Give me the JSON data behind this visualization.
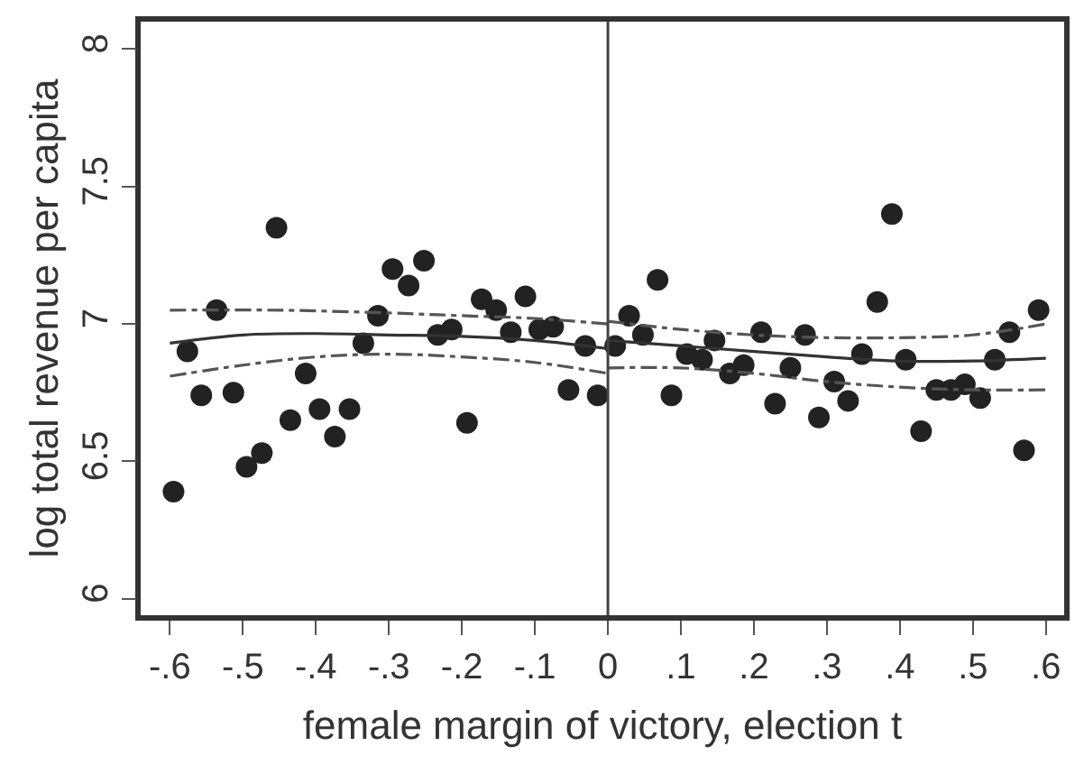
{
  "chart_data": {
    "type": "scatter",
    "xlabel": "female margin of victory, election t",
    "ylabel": "log total revenue per capita",
    "xlim": [
      -0.64,
      0.625
    ],
    "ylim": [
      5.94,
      8.1
    ],
    "xticks": [
      {
        "value": -0.6,
        "label": "-.6"
      },
      {
        "value": -0.5,
        "label": "-.5"
      },
      {
        "value": -0.4,
        "label": "-.4"
      },
      {
        "value": -0.3,
        "label": "-.3"
      },
      {
        "value": -0.2,
        "label": "-.2"
      },
      {
        "value": -0.1,
        "label": "-.1"
      },
      0,
      {
        "value": 0.1,
        "label": ".1"
      },
      {
        "value": 0.2,
        "label": ".2"
      },
      {
        "value": 0.3,
        "label": ".3"
      },
      {
        "value": 0.4,
        "label": ".4"
      },
      {
        "value": 0.5,
        "label": ".5"
      },
      {
        "value": 0.6,
        "label": ".6"
      }
    ],
    "yticks": [
      6,
      6.5,
      7,
      7.5,
      8
    ],
    "ref_lines": [
      {
        "axis": "x",
        "value": 0,
        "color": "#444444"
      }
    ],
    "series": [
      {
        "marker": "circle",
        "color": "#222222",
        "x": [
          -0.595,
          -0.576,
          -0.557,
          -0.536,
          -0.513,
          -0.495,
          -0.474,
          -0.454,
          -0.435,
          -0.414,
          -0.395,
          -0.374,
          -0.354,
          -0.335,
          -0.315,
          -0.295,
          -0.273,
          -0.252,
          -0.233,
          -0.214,
          -0.193,
          -0.173,
          -0.153,
          -0.133,
          -0.113,
          -0.094,
          -0.075,
          -0.054,
          -0.031,
          -0.014,
          0.01,
          0.029,
          0.048,
          0.068,
          0.087,
          0.108,
          0.129,
          0.146,
          0.167,
          0.186,
          0.21,
          0.229,
          0.25,
          0.27,
          0.289,
          0.31,
          0.329,
          0.348,
          0.369,
          0.389,
          0.408,
          0.429,
          0.45,
          0.47,
          0.489,
          0.51,
          0.53,
          0.55,
          0.57,
          0.59
        ],
        "values": [
          6.39,
          6.9,
          6.74,
          7.05,
          6.75,
          6.48,
          6.53,
          7.35,
          6.65,
          6.82,
          6.69,
          6.59,
          6.69,
          6.93,
          7.03,
          7.2,
          7.14,
          7.23,
          6.96,
          6.98,
          6.64,
          7.09,
          7.05,
          6.97,
          7.1,
          6.98,
          6.99,
          6.76,
          6.92,
          6.74,
          6.92,
          7.03,
          6.96,
          7.16,
          6.74,
          6.89,
          6.87,
          6.94,
          6.82,
          6.85,
          6.97,
          6.71,
          6.84,
          6.96,
          6.66,
          6.79,
          6.72,
          6.89,
          7.08,
          7.4,
          6.87,
          6.61,
          6.76,
          6.76,
          6.78,
          6.73,
          6.87,
          6.97,
          6.54,
          7.05
        ]
      },
      {
        "type": "line",
        "marker": "none",
        "line_style": "solid",
        "color": "#333333",
        "x": [
          -0.6,
          -0.5,
          -0.4,
          -0.3,
          -0.2,
          -0.1,
          0
        ],
        "values": [
          6.93,
          6.96,
          6.965,
          6.96,
          6.955,
          6.94,
          6.91
        ]
      },
      {
        "type": "line",
        "marker": "none",
        "line_style": "dashed",
        "color": "#555555",
        "x": [
          -0.6,
          -0.45,
          -0.3,
          -0.2,
          -0.1,
          0
        ],
        "values": [
          7.05,
          7.05,
          7.04,
          7.03,
          7.02,
          7.0
        ]
      },
      {
        "type": "line",
        "marker": "none",
        "line_style": "dashed",
        "color": "#555555",
        "x": [
          -0.6,
          -0.5,
          -0.4,
          -0.3,
          -0.2,
          -0.1,
          0
        ],
        "values": [
          6.81,
          6.85,
          6.88,
          6.89,
          6.88,
          6.86,
          6.82
        ]
      },
      {
        "type": "line",
        "marker": "none",
        "line_style": "solid",
        "color": "#333333",
        "x": [
          0,
          0.1,
          0.2,
          0.3,
          0.4,
          0.5,
          0.6
        ],
        "values": [
          6.94,
          6.92,
          6.9,
          6.88,
          6.865,
          6.865,
          6.875
        ]
      },
      {
        "type": "line",
        "marker": "none",
        "line_style": "dashed",
        "color": "#555555",
        "x": [
          0,
          0.1,
          0.2,
          0.3,
          0.4,
          0.5,
          0.6
        ],
        "values": [
          7.01,
          6.98,
          6.96,
          6.95,
          6.95,
          6.96,
          7.0
        ]
      },
      {
        "type": "line",
        "marker": "none",
        "line_style": "dashed",
        "color": "#555555",
        "x": [
          0,
          0.1,
          0.2,
          0.3,
          0.4,
          0.5,
          0.6
        ],
        "values": [
          6.84,
          6.84,
          6.82,
          6.79,
          6.77,
          6.76,
          6.76
        ]
      }
    ]
  }
}
